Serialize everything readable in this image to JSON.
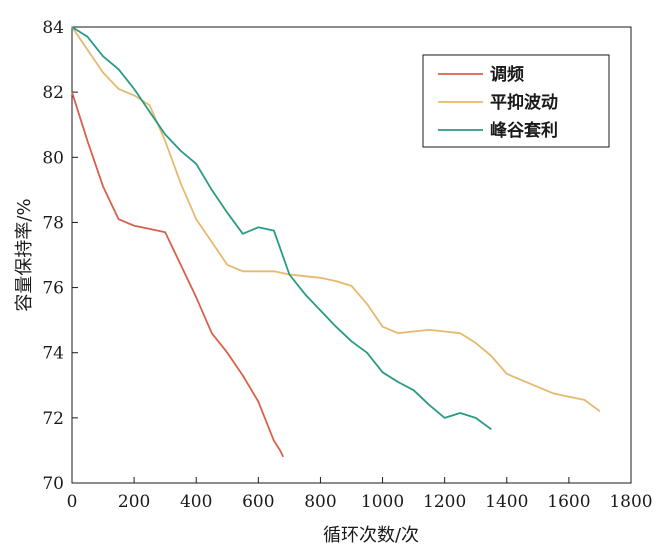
{
  "chart_data": {
    "type": "line",
    "title": "",
    "xlabel": "循环次数/次",
    "ylabel": "容量保持率/%",
    "xlim": [
      0,
      1800
    ],
    "ylim": [
      70,
      84
    ],
    "xticks": [
      0,
      200,
      400,
      600,
      800,
      1000,
      1200,
      1400,
      1600,
      1800
    ],
    "yticks": [
      70,
      72,
      74,
      76,
      78,
      80,
      82,
      84
    ],
    "grid": false,
    "legend_position": "top-right",
    "series": [
      {
        "name": "调频",
        "color": "#d9604a",
        "x": [
          0,
          50,
          100,
          150,
          200,
          250,
          300,
          350,
          400,
          450,
          500,
          550,
          600,
          650,
          670,
          680
        ],
        "y": [
          82.0,
          80.5,
          79.1,
          78.1,
          77.9,
          77.8,
          77.7,
          76.7,
          75.7,
          74.6,
          74.0,
          73.3,
          72.5,
          71.3,
          71.0,
          70.8
        ]
      },
      {
        "name": "平抑波动",
        "color": "#e6b96e",
        "x": [
          0,
          50,
          100,
          150,
          200,
          250,
          300,
          350,
          400,
          450,
          500,
          550,
          600,
          650,
          700,
          750,
          800,
          850,
          900,
          950,
          1000,
          1050,
          1100,
          1150,
          1200,
          1250,
          1300,
          1350,
          1400,
          1450,
          1500,
          1550,
          1600,
          1650,
          1700
        ],
        "y": [
          84.0,
          83.3,
          82.6,
          82.1,
          81.9,
          81.6,
          80.5,
          79.2,
          78.1,
          77.4,
          76.7,
          76.5,
          76.5,
          76.5,
          76.4,
          76.35,
          76.3,
          76.2,
          76.05,
          75.5,
          74.8,
          74.6,
          74.65,
          74.7,
          74.65,
          74.6,
          74.3,
          73.9,
          73.35,
          73.15,
          72.95,
          72.75,
          72.65,
          72.55,
          72.2
        ]
      },
      {
        "name": "峰谷套利",
        "color": "#2a9a85",
        "x": [
          0,
          50,
          100,
          150,
          200,
          250,
          300,
          350,
          400,
          450,
          500,
          550,
          600,
          650,
          700,
          750,
          800,
          850,
          900,
          950,
          1000,
          1050,
          1100,
          1150,
          1200,
          1250,
          1300,
          1350
        ],
        "y": [
          84.0,
          83.7,
          83.1,
          82.7,
          82.1,
          81.4,
          80.7,
          80.2,
          79.8,
          79.0,
          78.3,
          77.65,
          77.85,
          77.75,
          76.4,
          75.8,
          75.3,
          74.8,
          74.35,
          74.0,
          73.4,
          73.1,
          72.85,
          72.4,
          72.0,
          72.15,
          72.0,
          71.65
        ]
      }
    ]
  }
}
